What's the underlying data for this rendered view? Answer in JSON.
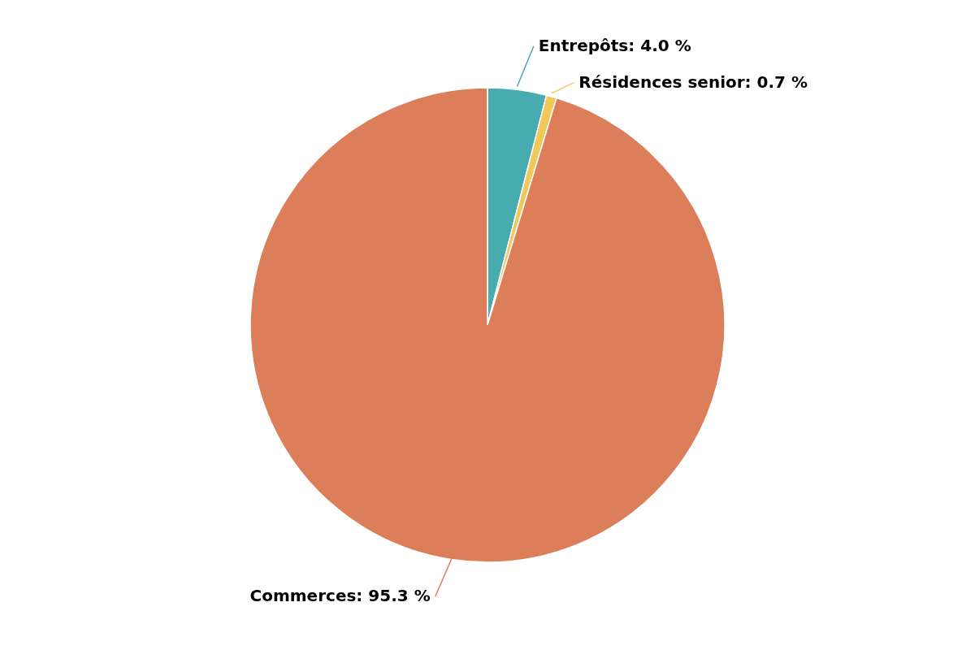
{
  "chart_data": {
    "type": "pie",
    "categories": [
      "Entrepôts",
      "Résidences senior",
      "Commerces"
    ],
    "values": [
      4.0,
      0.7,
      95.3
    ],
    "colors": [
      "#48abb0",
      "#efc95a",
      "#dd7e5a"
    ],
    "value_labels": [
      "4.0 %",
      "0.7 %",
      "95.3 %"
    ]
  }
}
